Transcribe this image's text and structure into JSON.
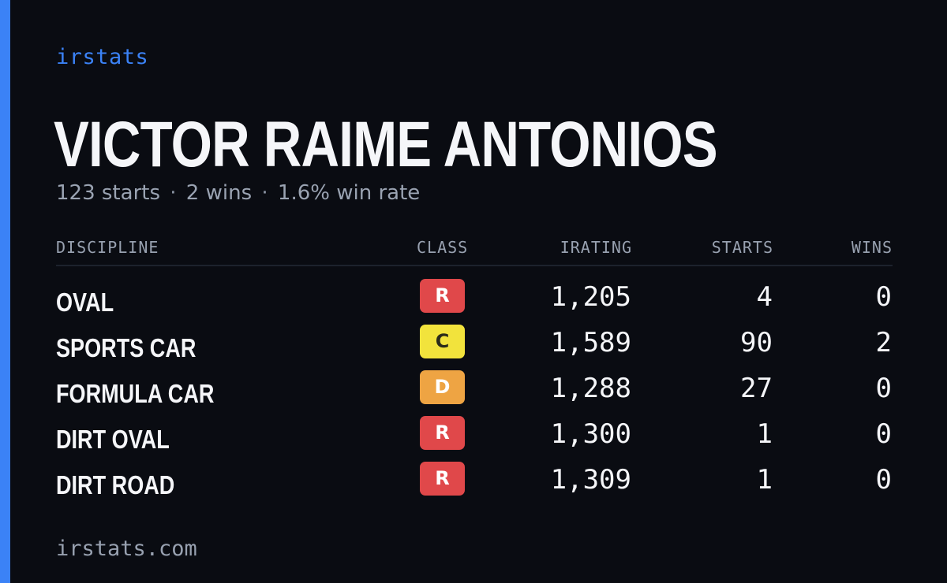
{
  "brand": "irstats",
  "driver": {
    "name": "VICTOR RAIME ANTONIOS",
    "summary": {
      "starts": "123 starts",
      "wins": "2 wins",
      "win_rate": "1.6% win rate",
      "separator": "·"
    }
  },
  "table": {
    "headers": {
      "discipline": "DISCIPLINE",
      "class": "CLASS",
      "irating": "IRATING",
      "starts": "STARTS",
      "wins": "WINS"
    },
    "rows": [
      {
        "discipline": "OVAL",
        "class": "R",
        "class_color": "#e0484a",
        "class_text_color": "#ffffff",
        "irating": "1,205",
        "starts": "4",
        "wins": "0"
      },
      {
        "discipline": "SPORTS CAR",
        "class": "C",
        "class_color": "#f2e33c",
        "class_text_color": "#2a2a1a",
        "irating": "1,589",
        "starts": "90",
        "wins": "2"
      },
      {
        "discipline": "FORMULA CAR",
        "class": "D",
        "class_color": "#eea443",
        "class_text_color": "#ffffff",
        "irating": "1,288",
        "starts": "27",
        "wins": "0"
      },
      {
        "discipline": "DIRT OVAL",
        "class": "R",
        "class_color": "#e0484a",
        "class_text_color": "#ffffff",
        "irating": "1,300",
        "starts": "1",
        "wins": "0"
      },
      {
        "discipline": "DIRT ROAD",
        "class": "R",
        "class_color": "#e0484a",
        "class_text_color": "#ffffff",
        "irating": "1,309",
        "starts": "1",
        "wins": "0"
      }
    ]
  },
  "footer": "irstats.com",
  "colors": {
    "accent": "#3b82f6",
    "background": "#0a0c12"
  }
}
